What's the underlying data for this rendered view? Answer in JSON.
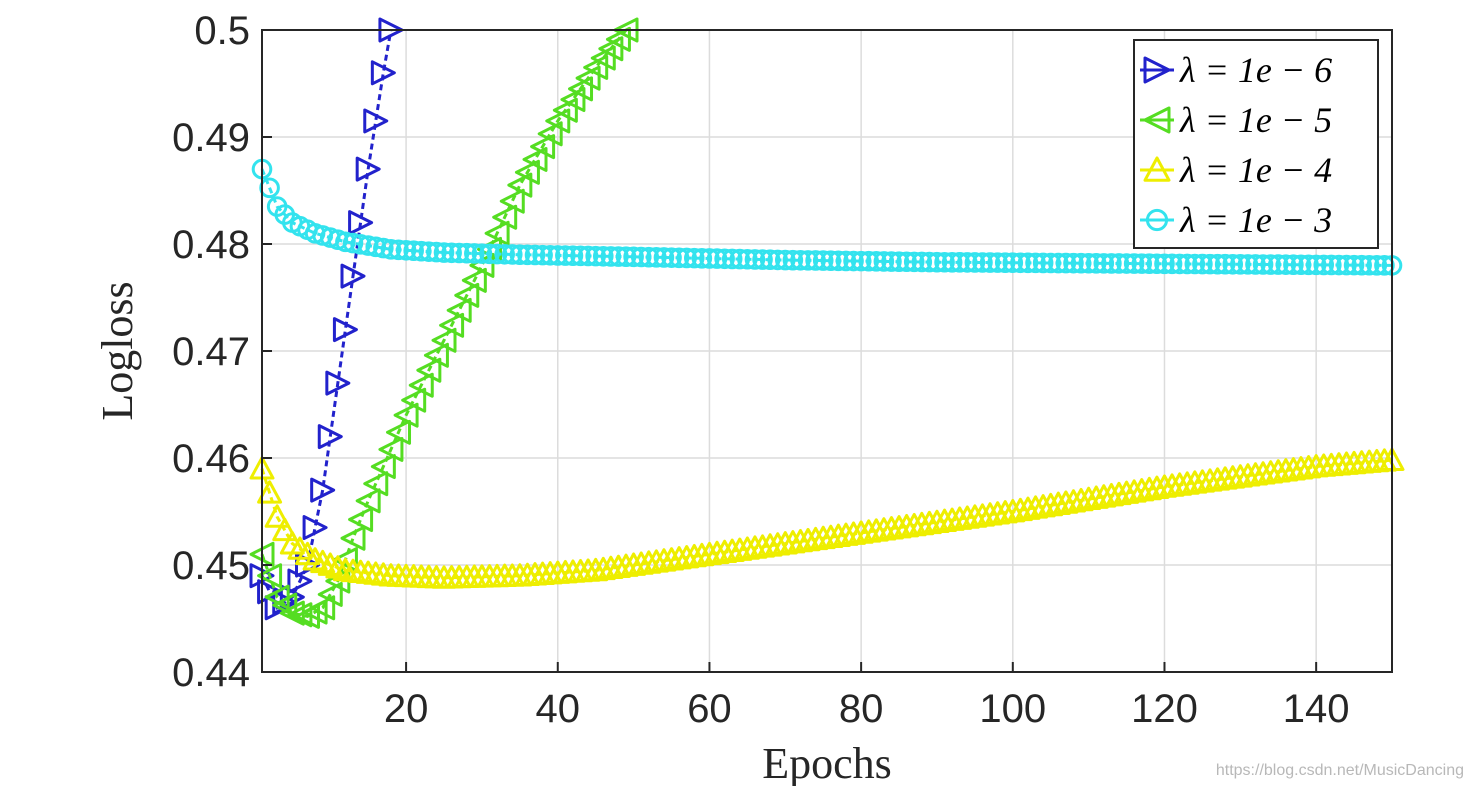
{
  "chart_data": {
    "type": "line",
    "title": "",
    "xlabel": "Epochs",
    "ylabel": "Logloss",
    "xlim": [
      1,
      150
    ],
    "ylim": [
      0.44,
      0.5
    ],
    "xticks": [
      20,
      40,
      60,
      80,
      100,
      120,
      140
    ],
    "yticks": [
      0.44,
      0.45,
      0.46,
      0.47,
      0.48,
      0.49,
      0.5
    ],
    "ytick_labels": [
      "0.44",
      "0.45",
      "0.46",
      "0.47",
      "0.48",
      "0.49",
      "0.5"
    ],
    "grid": true,
    "legend_position": "top-right",
    "series": [
      {
        "name": "λ = 1e − 6",
        "color": "#2222cc",
        "marker": "triangle-right",
        "x": [
          1,
          3,
          5,
          7,
          9,
          11,
          13,
          15,
          17,
          18
        ],
        "y": [
          0.449,
          0.446,
          0.447,
          0.45,
          0.457,
          0.467,
          0.477,
          0.487,
          0.496,
          0.5
        ]
      },
      {
        "name": "λ = 1e − 5",
        "color": "#55dd22",
        "marker": "triangle-left",
        "x": [
          1,
          3,
          5,
          7,
          9,
          11,
          13,
          15,
          20,
          25,
          30,
          35,
          40,
          45,
          49
        ],
        "y": [
          0.451,
          0.447,
          0.4455,
          0.4452,
          0.446,
          0.4485,
          0.4525,
          0.456,
          0.464,
          0.471,
          0.478,
          0.4855,
          0.4915,
          0.4965,
          0.5
        ]
      },
      {
        "name": "λ = 1e − 4",
        "color": "#eeee00",
        "marker": "triangle-up",
        "x": [
          1,
          3,
          5,
          8,
          12,
          18,
          25,
          35,
          45,
          55,
          65,
          80,
          100,
          120,
          140,
          150
        ],
        "y": [
          0.459,
          0.4545,
          0.452,
          0.4505,
          0.4495,
          0.449,
          0.4488,
          0.449,
          0.4495,
          0.4505,
          0.4515,
          0.453,
          0.455,
          0.4573,
          0.4592,
          0.4598
        ]
      },
      {
        "name": "λ = 1e − 3",
        "color": "#33e3ee",
        "marker": "circle",
        "x": [
          1,
          3,
          5,
          8,
          12,
          18,
          25,
          35,
          50,
          70,
          90,
          110,
          130,
          150
        ],
        "y": [
          0.487,
          0.4835,
          0.482,
          0.481,
          0.4802,
          0.4795,
          0.4792,
          0.479,
          0.4788,
          0.4785,
          0.4783,
          0.4782,
          0.4781,
          0.478
        ]
      }
    ]
  },
  "watermark": "https://blog.csdn.net/MusicDancing"
}
